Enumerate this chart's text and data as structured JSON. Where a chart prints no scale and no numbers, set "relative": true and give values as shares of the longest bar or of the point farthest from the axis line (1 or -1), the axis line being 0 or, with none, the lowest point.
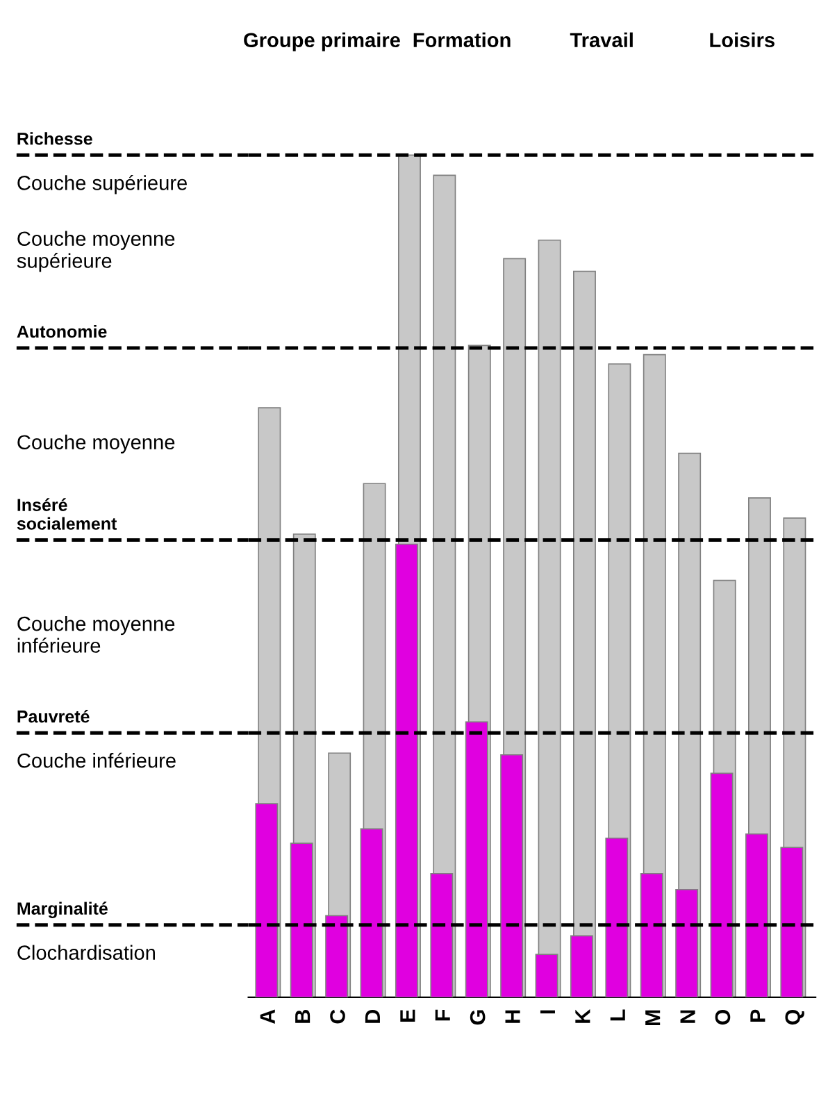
{
  "chart_data": {
    "type": "bar",
    "relative": true,
    "categories": [
      "A",
      "B",
      "C",
      "D",
      "E",
      "F",
      "G",
      "H",
      "I",
      "K",
      "L",
      "M",
      "N",
      "O",
      "P",
      "Q"
    ],
    "series": [
      {
        "color": "#c8c8c8",
        "values": [
          0.7,
          0.55,
          0.29,
          0.61,
          1.0,
          0.976,
          0.774,
          0.877,
          0.899,
          0.862,
          0.752,
          0.763,
          0.646,
          0.495,
          0.593,
          0.569
        ]
      },
      {
        "color": "#e000e0",
        "values": [
          0.23,
          0.183,
          0.097,
          0.2,
          0.538,
          0.147,
          0.327,
          0.288,
          0.051,
          0.073,
          0.189,
          0.147,
          0.128,
          0.266,
          0.194,
          0.178
        ]
      }
    ],
    "ref_lines": [
      {
        "axis": "y",
        "value": 1.0,
        "label": "Richesse",
        "color": "#000000",
        "line_style": "dashed"
      },
      {
        "axis": "y",
        "value": 0.771,
        "label": "Autonomie",
        "color": "#000000",
        "line_style": "dashed"
      },
      {
        "axis": "y",
        "value": 0.543,
        "label": "Inséré\nsocialement",
        "color": "#000000",
        "line_style": "dashed"
      },
      {
        "axis": "y",
        "value": 0.314,
        "label": "Pauvreté",
        "color": "#000000",
        "line_style": "dashed"
      },
      {
        "axis": "y",
        "value": 0.086,
        "label": "Marginalité",
        "color": "#000000",
        "line_style": "dashed"
      }
    ],
    "annotations": [
      "Groupe primaire",
      "Formation",
      "Travail",
      "Loisirs",
      "Couche supérieure",
      "Couche moyenne\nsupérieure",
      "Couche moyenne",
      "Couche moyenne\ninférieure",
      "Couche inférieure",
      "Clochardisation"
    ],
    "grid": false,
    "legend": false
  }
}
